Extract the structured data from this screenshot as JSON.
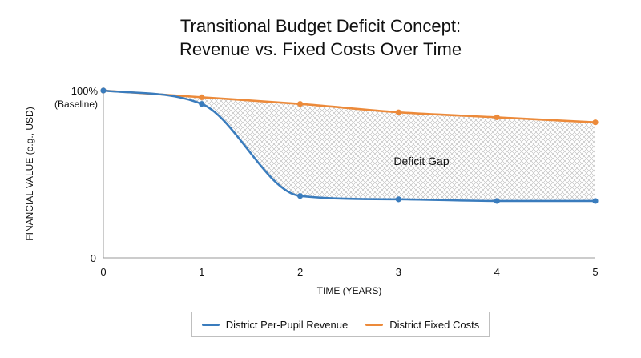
{
  "chart_data": {
    "type": "line",
    "title_line1": "Transitional Budget Deficit Concept:",
    "title_line2": "Revenue vs. Fixed Costs Over Time",
    "xlabel": "TIME (YEARS)",
    "ylabel": "FINANCIAL VALUE (e.g., USD)",
    "y_top_label": "100%",
    "y_top_sublabel": "(Baseline)",
    "y_zero_label": "0",
    "x": [
      0,
      1,
      2,
      3,
      4,
      5
    ],
    "x_tick_labels": [
      "0",
      "1",
      "2",
      "3",
      "4",
      "5"
    ],
    "ylim": [
      0,
      100
    ],
    "xlim": [
      0,
      5
    ],
    "series": [
      {
        "name": "District Per-Pupil Revenue",
        "color": "#3a7cbd",
        "values": [
          100,
          92,
          37,
          35,
          34,
          34
        ]
      },
      {
        "name": "District Fixed Costs",
        "color": "#ec8a3a",
        "values": [
          100,
          96,
          92,
          87,
          84,
          81
        ]
      }
    ],
    "annotation": "Deficit Gap",
    "shaded_region": "between series (crosshatch)",
    "legend_position": "bottom-center",
    "grid": false
  }
}
